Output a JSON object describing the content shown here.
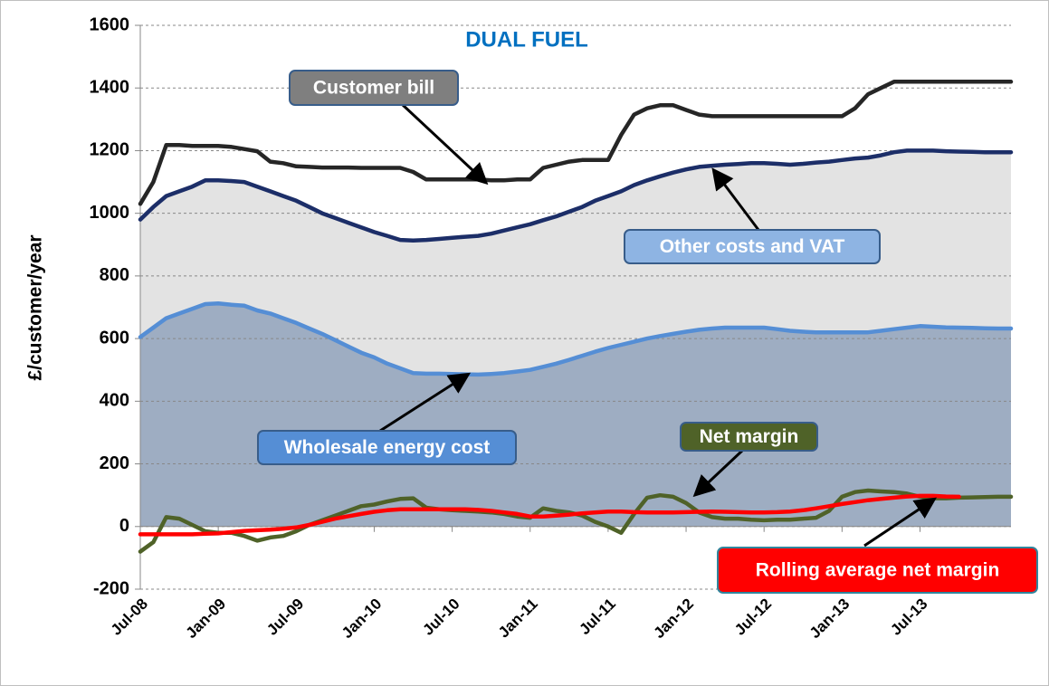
{
  "chart_data": {
    "type": "line",
    "title": "DUAL FUEL",
    "y_label": "£/customer/year",
    "categories": [
      "Jul-08",
      null,
      null,
      null,
      null,
      null,
      "Jan-09",
      null,
      null,
      null,
      null,
      null,
      "Jul-09",
      null,
      null,
      null,
      null,
      null,
      "Jan-10",
      null,
      null,
      null,
      null,
      null,
      "Jul-10",
      null,
      null,
      null,
      null,
      null,
      "Jan-11",
      null,
      null,
      null,
      null,
      null,
      "Jul-11",
      null,
      null,
      null,
      null,
      null,
      "Jan-12",
      null,
      null,
      null,
      null,
      null,
      "Jul-12",
      null,
      null,
      null,
      null,
      null,
      "Jan-13",
      null,
      null,
      null,
      null,
      null,
      "Jul-13",
      null,
      null,
      null,
      null,
      null,
      null,
      null
    ],
    "series": [
      {
        "name": "Customer bill",
        "color": "#262626",
        "box_color": "#7f7f7f",
        "values": [
          1030,
          1100,
          1218,
          1218,
          1215,
          1215,
          1215,
          1212,
          1205,
          1198,
          1165,
          1160,
          1150,
          1148,
          1146,
          1146,
          1146,
          1145,
          1145,
          1145,
          1145,
          1132,
          1108,
          1108,
          1108,
          1108,
          1108,
          1105,
          1105,
          1108,
          1108,
          1145,
          1155,
          1165,
          1170,
          1170,
          1170,
          1250,
          1315,
          1335,
          1345,
          1345,
          1330,
          1315,
          1310,
          1310,
          1310,
          1310,
          1310,
          1310,
          1310,
          1310,
          1310,
          1310,
          1310,
          1335,
          1380,
          1400,
          1420,
          1420,
          1420,
          1420,
          1420,
          1420,
          1420,
          1420,
          1420,
          1420
        ]
      },
      {
        "name": "Other costs and  VAT",
        "color": "#1c2e68",
        "box_color": "#8eb4e3",
        "area": "#e3e3e3",
        "values": [
          980,
          1020,
          1055,
          1070,
          1085,
          1105,
          1105,
          1103,
          1100,
          1085,
          1070,
          1055,
          1040,
          1020,
          1000,
          985,
          970,
          955,
          940,
          928,
          915,
          913,
          915,
          918,
          922,
          925,
          928,
          935,
          945,
          955,
          965,
          978,
          990,
          1005,
          1020,
          1040,
          1055,
          1070,
          1090,
          1105,
          1118,
          1130,
          1140,
          1148,
          1152,
          1155,
          1157,
          1160,
          1160,
          1158,
          1155,
          1158,
          1162,
          1165,
          1170,
          1175,
          1178,
          1185,
          1195,
          1200,
          1200,
          1200,
          1198,
          1197,
          1196,
          1195,
          1195,
          1195
        ]
      },
      {
        "name": "Wholesale energy cost",
        "color": "#558ed5",
        "box_color": "#558ed5",
        "area": "#9eadc2",
        "values": [
          605,
          635,
          665,
          680,
          695,
          710,
          712,
          708,
          705,
          690,
          680,
          665,
          650,
          632,
          615,
          595,
          575,
          555,
          540,
          520,
          505,
          490,
          488,
          488,
          487,
          486,
          485,
          487,
          490,
          495,
          500,
          510,
          520,
          532,
          545,
          558,
          570,
          580,
          590,
          600,
          608,
          615,
          622,
          628,
          632,
          635,
          635,
          635,
          635,
          630,
          625,
          622,
          620,
          620,
          620,
          620,
          620,
          625,
          630,
          635,
          640,
          638,
          636,
          635,
          634,
          633,
          632,
          632
        ]
      },
      {
        "name": "Net margin",
        "color": "#4f6228",
        "box_color": "#4f6228",
        "values": [
          -80,
          -50,
          30,
          25,
          5,
          -15,
          -20,
          -20,
          -30,
          -45,
          -35,
          -30,
          -15,
          5,
          20,
          35,
          50,
          65,
          70,
          80,
          88,
          90,
          60,
          55,
          52,
          50,
          48,
          45,
          40,
          32,
          28,
          58,
          50,
          45,
          35,
          15,
          0,
          -20,
          40,
          92,
          100,
          95,
          75,
          45,
          30,
          25,
          25,
          22,
          20,
          22,
          22,
          25,
          28,
          50,
          95,
          110,
          115,
          112,
          110,
          105,
          95,
          90,
          90,
          92,
          93,
          94,
          95,
          95
        ]
      },
      {
        "name": "Rolling average net margin",
        "color": "#ff0000",
        "box_color": "#ff0000",
        "values": [
          -25,
          -25,
          -25,
          -25,
          -25,
          -23,
          -22,
          -18,
          -14,
          -12,
          -10,
          -7,
          -3,
          5,
          15,
          25,
          33,
          40,
          47,
          52,
          55,
          55,
          55,
          55,
          55,
          55,
          53,
          50,
          45,
          40,
          32,
          32,
          35,
          38,
          42,
          45,
          48,
          48,
          46,
          45,
          45,
          45,
          46,
          47,
          48,
          47,
          46,
          45,
          45,
          46,
          48,
          52,
          58,
          65,
          72,
          78,
          84,
          88,
          92,
          96,
          98,
          98,
          96,
          95,
          null,
          null,
          null,
          null
        ]
      }
    ],
    "ylim": [
      -200,
      1600
    ],
    "yticks": [
      -200,
      0,
      200,
      400,
      600,
      800,
      1000,
      1200,
      1400,
      1600
    ],
    "grid": true
  }
}
